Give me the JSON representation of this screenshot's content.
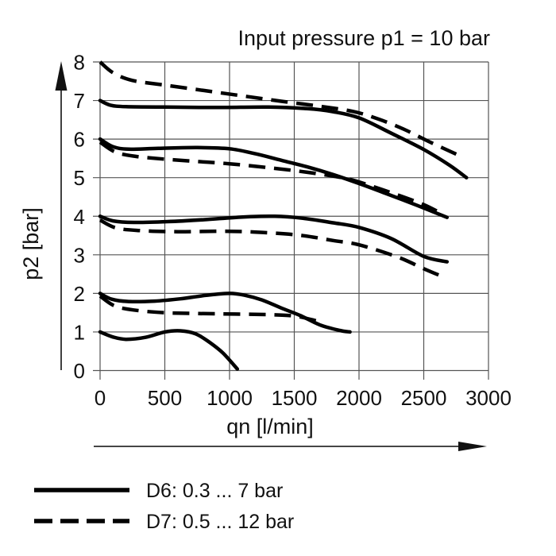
{
  "figure": {
    "title": "Input pressure p1 = 10 bar",
    "xlabel": "qn [l/min]",
    "ylabel": "p2 [bar]"
  },
  "colors": {
    "curve": "#000000",
    "grid": "#555555",
    "text": "#111111",
    "background": "#ffffff"
  },
  "legend": {
    "items": [
      {
        "id": "d6",
        "style": "solid",
        "label": "D6: 0.3 ... 7 bar"
      },
      {
        "id": "d7",
        "style": "dashed",
        "label": "D7: 0.5 ... 12 bar"
      }
    ]
  },
  "chart_data": {
    "type": "line",
    "title": "Input pressure p1 = 10 bar",
    "xlabel": "qn [l/min]",
    "ylabel": "p2 [bar]",
    "xlim": [
      0,
      3000
    ],
    "ylim": [
      0,
      8
    ],
    "xticks": [
      0,
      500,
      1000,
      1500,
      2000,
      2500,
      3000
    ],
    "yticks": [
      0,
      1,
      2,
      3,
      4,
      5,
      6,
      7,
      8
    ],
    "grid": true,
    "legend_position": "below",
    "series": [
      {
        "id": "D6-set7",
        "group": "D6",
        "style": "solid",
        "points": [
          [
            0,
            7.0
          ],
          [
            80,
            6.88
          ],
          [
            200,
            6.84
          ],
          [
            500,
            6.83
          ],
          [
            900,
            6.82
          ],
          [
            1300,
            6.83
          ],
          [
            1600,
            6.79
          ],
          [
            1800,
            6.71
          ],
          [
            2000,
            6.55
          ],
          [
            2250,
            6.15
          ],
          [
            2500,
            5.73
          ],
          [
            2700,
            5.32
          ],
          [
            2830,
            5.0
          ]
        ]
      },
      {
        "id": "D6-set6",
        "group": "D6",
        "style": "solid",
        "points": [
          [
            0,
            6.0
          ],
          [
            100,
            5.8
          ],
          [
            220,
            5.74
          ],
          [
            450,
            5.76
          ],
          [
            750,
            5.78
          ],
          [
            1000,
            5.75
          ],
          [
            1200,
            5.62
          ],
          [
            1400,
            5.45
          ],
          [
            1600,
            5.28
          ],
          [
            1800,
            5.08
          ],
          [
            2000,
            4.85
          ],
          [
            2200,
            4.6
          ],
          [
            2450,
            4.28
          ],
          [
            2680,
            3.97
          ]
        ]
      },
      {
        "id": "D6-set4",
        "group": "D6",
        "style": "solid",
        "points": [
          [
            0,
            4.0
          ],
          [
            100,
            3.88
          ],
          [
            260,
            3.84
          ],
          [
            520,
            3.86
          ],
          [
            800,
            3.91
          ],
          [
            1100,
            3.98
          ],
          [
            1350,
            4.0
          ],
          [
            1560,
            3.95
          ],
          [
            1800,
            3.83
          ],
          [
            2000,
            3.71
          ],
          [
            2250,
            3.42
          ],
          [
            2500,
            2.96
          ],
          [
            2680,
            2.82
          ]
        ]
      },
      {
        "id": "D6-set2",
        "group": "D6",
        "style": "solid",
        "points": [
          [
            0,
            2.0
          ],
          [
            90,
            1.85
          ],
          [
            220,
            1.79
          ],
          [
            420,
            1.8
          ],
          [
            620,
            1.86
          ],
          [
            820,
            1.95
          ],
          [
            1000,
            2.0
          ],
          [
            1120,
            1.95
          ],
          [
            1250,
            1.83
          ],
          [
            1400,
            1.62
          ],
          [
            1550,
            1.42
          ],
          [
            1700,
            1.18
          ],
          [
            1850,
            1.04
          ],
          [
            1930,
            1.0
          ]
        ]
      },
      {
        "id": "D6-set1",
        "group": "D6",
        "style": "solid",
        "points": [
          [
            0,
            1.0
          ],
          [
            100,
            0.87
          ],
          [
            200,
            0.81
          ],
          [
            350,
            0.86
          ],
          [
            500,
            1.0
          ],
          [
            620,
            1.03
          ],
          [
            740,
            0.95
          ],
          [
            850,
            0.72
          ],
          [
            950,
            0.45
          ],
          [
            1060,
            0.04
          ]
        ]
      },
      {
        "id": "D7-set8",
        "group": "D7",
        "style": "dashed",
        "points": [
          [
            0,
            8.0
          ],
          [
            100,
            7.72
          ],
          [
            250,
            7.52
          ],
          [
            500,
            7.4
          ],
          [
            800,
            7.26
          ],
          [
            1100,
            7.12
          ],
          [
            1400,
            6.98
          ],
          [
            1700,
            6.85
          ],
          [
            1950,
            6.72
          ],
          [
            2150,
            6.52
          ],
          [
            2350,
            6.25
          ],
          [
            2550,
            5.92
          ],
          [
            2770,
            5.58
          ]
        ]
      },
      {
        "id": "D7-set6",
        "group": "D7",
        "style": "dashed",
        "points": [
          [
            0,
            5.92
          ],
          [
            120,
            5.66
          ],
          [
            280,
            5.55
          ],
          [
            500,
            5.48
          ],
          [
            750,
            5.42
          ],
          [
            1000,
            5.36
          ],
          [
            1300,
            5.26
          ],
          [
            1600,
            5.14
          ],
          [
            1900,
            4.98
          ],
          [
            2100,
            4.78
          ],
          [
            2300,
            4.55
          ],
          [
            2500,
            4.3
          ],
          [
            2620,
            4.1
          ]
        ]
      },
      {
        "id": "D7-set4",
        "group": "D7",
        "style": "dashed",
        "points": [
          [
            0,
            3.9
          ],
          [
            120,
            3.7
          ],
          [
            300,
            3.63
          ],
          [
            600,
            3.6
          ],
          [
            1000,
            3.61
          ],
          [
            1300,
            3.57
          ],
          [
            1560,
            3.5
          ],
          [
            1800,
            3.37
          ],
          [
            2000,
            3.26
          ],
          [
            2300,
            2.94
          ],
          [
            2500,
            2.64
          ],
          [
            2620,
            2.47
          ]
        ]
      },
      {
        "id": "D7-set2",
        "group": "D7",
        "style": "dashed",
        "points": [
          [
            0,
            1.93
          ],
          [
            110,
            1.68
          ],
          [
            260,
            1.57
          ],
          [
            500,
            1.5
          ],
          [
            900,
            1.47
          ],
          [
            1300,
            1.45
          ],
          [
            1510,
            1.41
          ],
          [
            1680,
            1.28
          ]
        ]
      }
    ]
  }
}
